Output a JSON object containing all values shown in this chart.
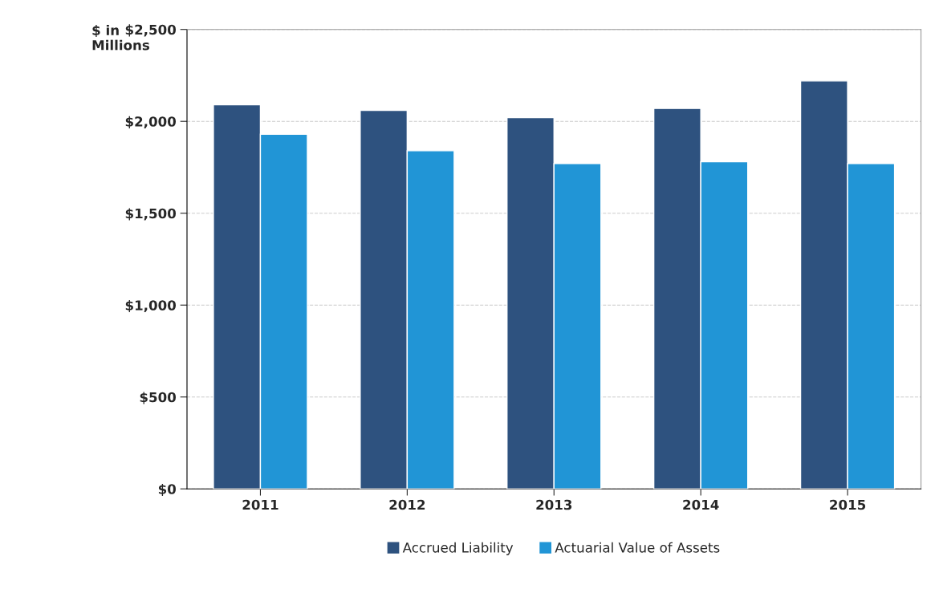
{
  "chart_data": {
    "type": "bar",
    "ylabel": "$ in\nMillions",
    "categories": [
      "2011",
      "2012",
      "2013",
      "2014",
      "2015"
    ],
    "series": [
      {
        "name": "Accrued Liability",
        "color": "#2e527f",
        "values": [
          2090,
          2060,
          2020,
          2070,
          2220
        ]
      },
      {
        "name": "Actuarial Value of Assets",
        "color": "#2195d6",
        "values": [
          1930,
          1840,
          1770,
          1780,
          1770
        ]
      }
    ],
    "ylim": [
      0,
      2500
    ],
    "yticks": [
      {
        "value": 0,
        "label": "$0"
      },
      {
        "value": 500,
        "label": "$500"
      },
      {
        "value": 1000,
        "label": "$1,000"
      },
      {
        "value": 1500,
        "label": "$1,500"
      },
      {
        "value": 2000,
        "label": "$2,000"
      },
      {
        "value": 2500,
        "label": "$2,500"
      }
    ],
    "grid": "y",
    "legend": "bottom"
  }
}
